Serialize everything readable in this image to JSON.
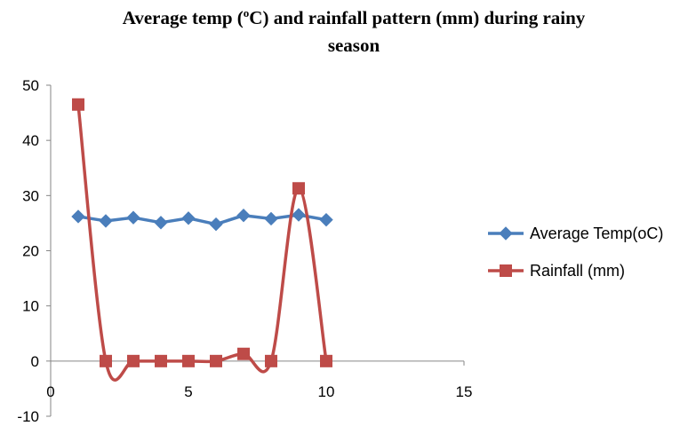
{
  "chart_data": {
    "type": "line",
    "title": "Average temp (oC)  and rainfall pattern (mm) during rainy season",
    "title_lines": [
      "Average temp (",
      "C)  and rainfall pattern (mm) during rainy",
      "season"
    ],
    "title_superscript": "o",
    "xlabel": "",
    "ylabel": "",
    "xlim": [
      0,
      15
    ],
    "ylim": [
      -10,
      50
    ],
    "x_ticks": [
      "0",
      "5",
      "10",
      "15"
    ],
    "y_ticks": [
      "-10",
      "0",
      "10",
      "20",
      "30",
      "40",
      "50"
    ],
    "grid": false,
    "legend_position": "right",
    "series": [
      {
        "name": "Average Temp(oC)",
        "color": "#4a7ebb",
        "marker": "diamond",
        "smooth": false,
        "x": [
          1,
          2,
          3,
          4,
          5,
          6,
          7,
          8,
          9,
          10
        ],
        "y": [
          26.2,
          25.4,
          26.0,
          25.1,
          25.9,
          24.8,
          26.4,
          25.8,
          26.5,
          25.6
        ]
      },
      {
        "name": "Rainfall (mm)",
        "color": "#be4b48",
        "marker": "square",
        "smooth": true,
        "x": [
          1,
          2,
          3,
          4,
          5,
          6,
          7,
          8,
          9,
          10
        ],
        "y": [
          46.5,
          0,
          0,
          0,
          0,
          0,
          1.3,
          0,
          31.3,
          0
        ]
      }
    ]
  }
}
